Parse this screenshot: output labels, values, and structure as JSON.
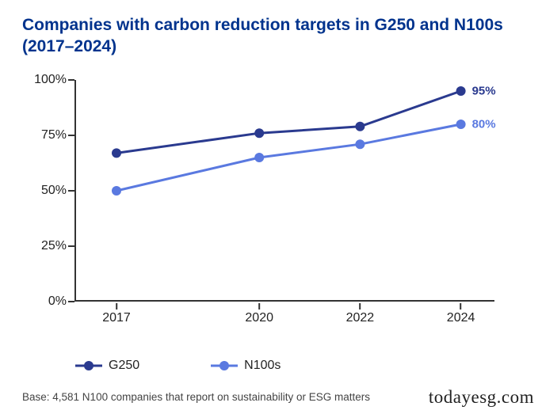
{
  "title": "Companies with carbon reduction targets in G250 and N100s (2017–2024)",
  "footnote": "Base: 4,581 N100 companies that report on sustainability or ESG matters",
  "watermark": "todayesg.com",
  "chart": {
    "type": "line",
    "background_color": "#ffffff",
    "axis_color": "#333333",
    "tick_fontsize": 16,
    "tick_color": "#222222",
    "line_width": 3,
    "marker_size": 12,
    "x": {
      "categories": [
        "2017",
        "2020",
        "2022",
        "2024"
      ],
      "positions_pct": [
        10,
        44,
        68,
        92
      ]
    },
    "y": {
      "min": 0,
      "max": 100,
      "ticks": [
        0,
        25,
        50,
        75,
        100
      ],
      "tick_labels": [
        "0%",
        "25%",
        "50%",
        "75%",
        "100%"
      ]
    },
    "series": [
      {
        "name": "G250",
        "color": "#2a3a8f",
        "values": [
          67,
          76,
          79,
          95
        ],
        "end_label": "95%",
        "end_label_color": "#2a3a8f"
      },
      {
        "name": "N100s",
        "color": "#5a79e0",
        "values": [
          50,
          65,
          71,
          80
        ],
        "end_label": "80%",
        "end_label_color": "#5a79e0"
      }
    ],
    "legend": {
      "items": [
        {
          "label": "G250",
          "color": "#2a3a8f"
        },
        {
          "label": "N100s",
          "color": "#5a79e0"
        }
      ]
    }
  }
}
